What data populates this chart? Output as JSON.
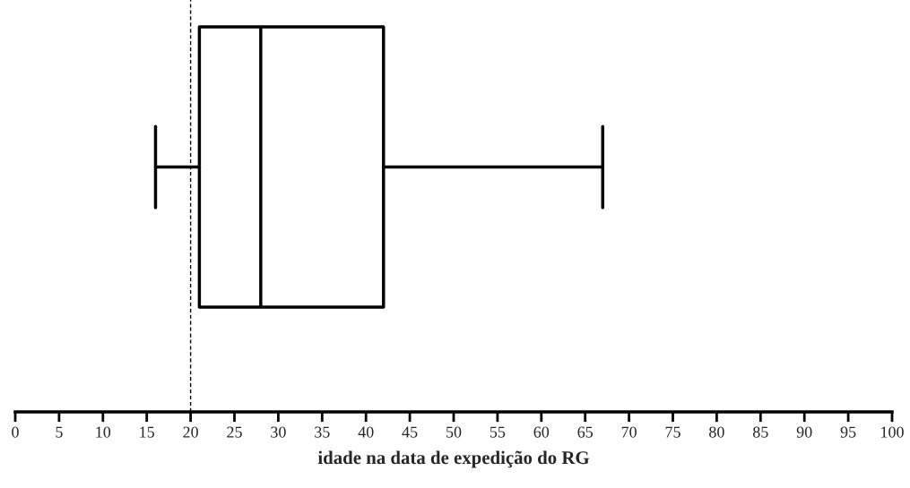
{
  "chart_data": {
    "type": "box",
    "orientation": "horizontal",
    "xlabel": "idade na data de expedição do RG",
    "categories": [
      null
    ],
    "boxes": [
      {
        "low": 16,
        "q1": 21,
        "median": 28,
        "q3": 42,
        "high": 67
      }
    ],
    "xlim": [
      0,
      100
    ],
    "xticks": [
      0,
      5,
      10,
      15,
      20,
      25,
      30,
      35,
      40,
      45,
      50,
      55,
      60,
      65,
      70,
      75,
      80,
      85,
      90,
      95,
      100
    ],
    "ref_lines": [
      {
        "axis": "x",
        "value": 20,
        "line_style": "dashed",
        "color": "#000000"
      }
    ],
    "grid": false,
    "legend": false
  }
}
